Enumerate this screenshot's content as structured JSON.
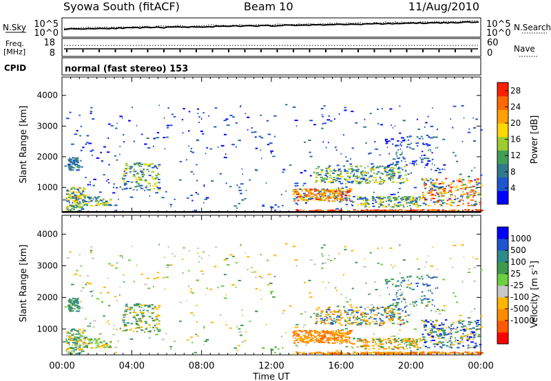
{
  "header": {
    "station": "Syowa South (fitACF)",
    "beam": "Beam 10",
    "date": "11/Aug/2010"
  },
  "top_panel": {
    "left_label": "N.Sky",
    "left_ticks": [
      "10^5",
      "10^0"
    ],
    "right_label": "N.Search",
    "right_ticks": [
      "10^5",
      "10^0"
    ]
  },
  "freq_panel": {
    "left_label_1": "Freq.",
    "left_label_2": "[MHz]",
    "left_ticks": [
      "18",
      "8"
    ],
    "right_label": "Nave",
    "right_ticks": [
      "60",
      "0"
    ]
  },
  "cpid": {
    "label": "CPID",
    "mode": "normal (fast stereo) 153"
  },
  "colors": {
    "power": [
      "#0000ff",
      "#1f55cf",
      "#2e7a8c",
      "#3fa055",
      "#9ccc2e",
      "#ffd800",
      "#ffa000",
      "#ff6a00",
      "#ff2000"
    ],
    "velocity": [
      "#ff0000",
      "#ff5a00",
      "#ff8c00",
      "#ffb500",
      "#c8c8c8",
      "#6cd040",
      "#3f9a4e",
      "#2f8a8a",
      "#1f55cf",
      "#0000ff"
    ]
  },
  "chart_data": [
    {
      "type": "heatmap",
      "name": "Power",
      "ylabel": "Slant Range [km]",
      "yticks": [
        1000,
        2000,
        3000,
        4000
      ],
      "ylim": [
        180,
        4600
      ],
      "xlim": [
        0,
        24
      ],
      "colorbar_label": "Power [dB]",
      "colorbar_ticks": [
        "4",
        "8",
        "12",
        "16",
        "20",
        "24",
        "28"
      ],
      "colorbar_range": [
        0,
        30
      ]
    },
    {
      "type": "heatmap",
      "name": "Velocity",
      "ylabel": "Slant Range [km]",
      "yticks": [
        1000,
        2000,
        3000,
        4000
      ],
      "ylim": [
        180,
        4600
      ],
      "xlim": [
        0,
        24
      ],
      "colorbar_label": "Velocity [m s^-1]",
      "colorbar_ticks": [
        "1000",
        "500",
        "100",
        "25",
        "-25",
        "-100",
        "-500",
        "-1000"
      ]
    }
  ],
  "x_axis": {
    "ticks": [
      "00:00",
      "04:00",
      "08:00",
      "12:00",
      "16:00",
      "20:00",
      "00:00"
    ],
    "label": "Time UT"
  }
}
